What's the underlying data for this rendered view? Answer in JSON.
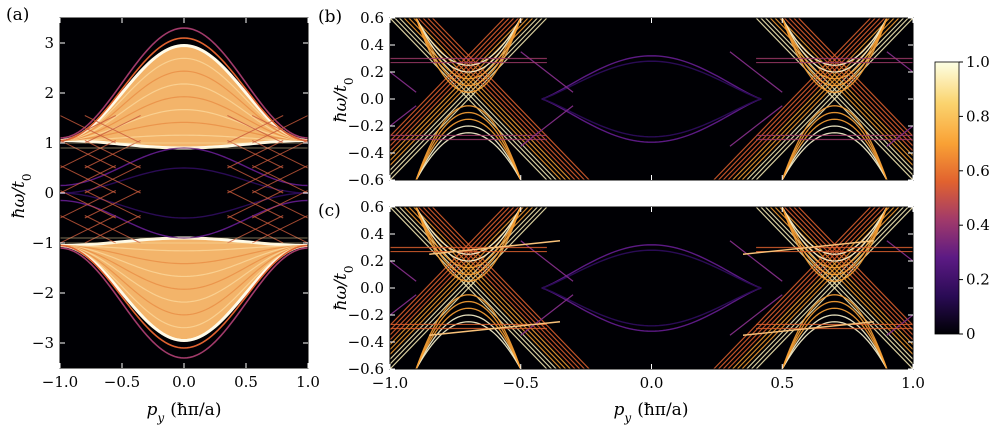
{
  "colors": {
    "colormap": [
      "#000004",
      "#2a0b55",
      "#5c1a84",
      "#a13a6a",
      "#e1622f",
      "#f9a135",
      "#fbd46f",
      "#fcffe4"
    ],
    "frame": "#000000"
  },
  "chart_data": [
    {
      "panel": "(a)",
      "type": "heatmap",
      "xlabel": "p_y (ħπ/a)",
      "ylabel": "ħω/t₀",
      "xlim": [
        -1.0,
        1.0
      ],
      "ylim": [
        -3.5,
        3.5
      ],
      "x_ticks": [
        "−1.0",
        "−0.5",
        "0.0",
        "0.5",
        "1.0"
      ],
      "x_tick_values": [
        -1.0,
        -0.5,
        0.0,
        0.5,
        1.0
      ],
      "y_ticks": [
        "3",
        "2",
        "1",
        "0",
        "−1",
        "−2",
        "−3"
      ],
      "y_tick_values": [
        3,
        2,
        1,
        0,
        -1,
        -2,
        -3
      ],
      "description_values": {
        "upper_band_top_at_p0": 2.95,
        "upper_band_bottom_at_p0": 0.9,
        "band_edge_at_p_pm1": 1.05,
        "outer_edge_top_at_p0": 3.3
      }
    },
    {
      "panel": "(b)",
      "type": "heatmap",
      "xlabel": "",
      "ylabel": "ħω/t₀",
      "xlim": [
        -1.0,
        1.0
      ],
      "ylim": [
        -0.6,
        0.6
      ],
      "y_ticks": [
        "0.6",
        "0.4",
        "0.2",
        "0.0",
        "−0.2",
        "−0.4",
        "−0.6"
      ],
      "y_tick_values": [
        0.6,
        0.4,
        0.2,
        0.0,
        -0.2,
        -0.4,
        -0.6
      ]
    },
    {
      "panel": "(c)",
      "type": "heatmap",
      "xlabel": "p_y (ħπ/a)",
      "ylabel": "ħω/t₀",
      "xlim": [
        -1.0,
        1.0
      ],
      "ylim": [
        -0.6,
        0.6
      ],
      "x_ticks": [
        "−1.0",
        "−0.5",
        "0.0",
        "0.5",
        "1.0"
      ],
      "x_tick_values": [
        -1.0,
        -0.5,
        0.0,
        0.5,
        1.0
      ],
      "y_ticks": [
        "0.6",
        "0.4",
        "0.2",
        "0.0",
        "−0.2",
        "−0.4",
        "−0.6"
      ],
      "y_tick_values": [
        0.6,
        0.4,
        0.2,
        0.0,
        -0.2,
        -0.4,
        -0.6
      ]
    },
    {
      "panel": "colorbar",
      "type": "colorbar",
      "range": [
        0,
        1.0
      ],
      "ticks": [
        "1.0",
        "0.8",
        "0.6",
        "0.4",
        "0.2",
        "0"
      ],
      "tick_values": [
        1.0,
        0.8,
        0.6,
        0.4,
        0.2,
        0
      ]
    }
  ],
  "labels": {
    "panel_a": "(a)",
    "panel_b": "(b)",
    "panel_c": "(c)",
    "ylabel_main": "ħω/t",
    "ylabel_sub": "0",
    "xlabel_main": "p",
    "xlabel_sub": "y",
    "xlabel_units": "(ħπ/a)"
  }
}
